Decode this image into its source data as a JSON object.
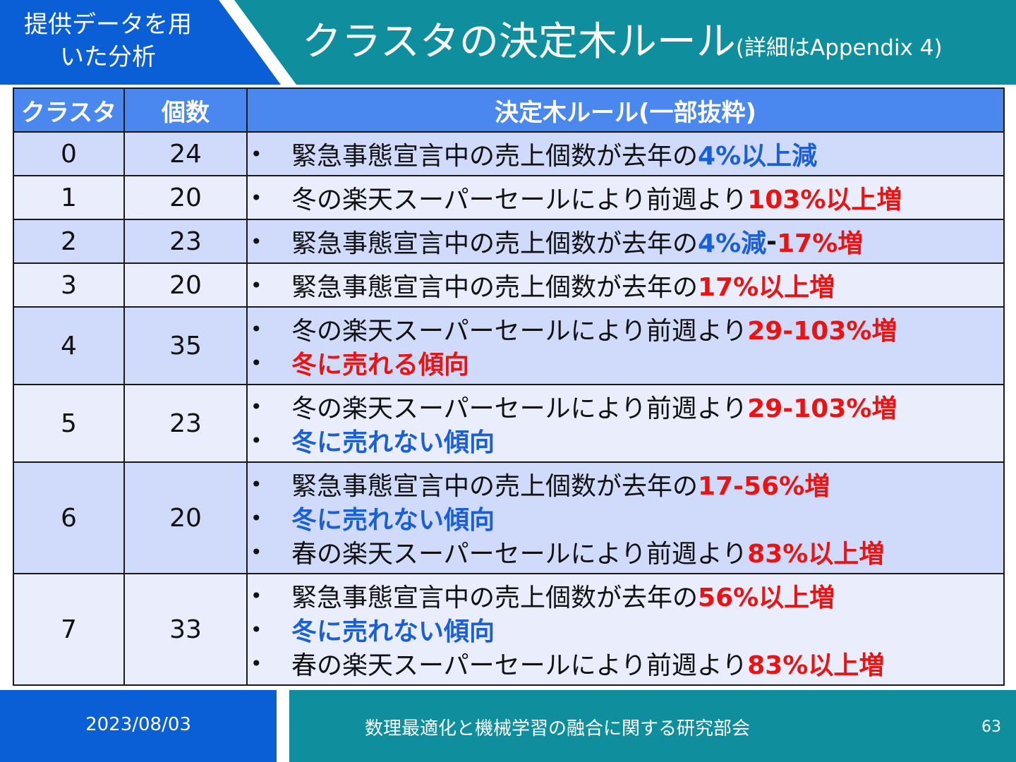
{
  "header": {
    "section_label": "提供データを用いた分析",
    "title_main": "クラスタの決定木ルール",
    "title_sub": "(詳細はAppendix 4)"
  },
  "table": {
    "headers": [
      "クラスタ",
      "個数",
      "決定木ルール(一部抜粋)"
    ],
    "rows": [
      {
        "cluster": "0",
        "count": "24",
        "rules": [
          [
            {
              "t": "緊急事態宣言中の売上個数が去年の",
              "c": ""
            },
            {
              "t": "4%以上減",
              "c": "blue"
            }
          ]
        ]
      },
      {
        "cluster": "1",
        "count": "20",
        "rules": [
          [
            {
              "t": "冬の楽天スーパーセールにより前週より",
              "c": ""
            },
            {
              "t": "103%以上増",
              "c": "red"
            }
          ]
        ]
      },
      {
        "cluster": "2",
        "count": "23",
        "rules": [
          [
            {
              "t": "緊急事態宣言中の売上個数が去年の",
              "c": ""
            },
            {
              "t": "4%減",
              "c": "blue"
            },
            {
              "t": "-",
              "c": "dark"
            },
            {
              "t": "17%増",
              "c": "red"
            }
          ]
        ]
      },
      {
        "cluster": "3",
        "count": "20",
        "rules": [
          [
            {
              "t": "緊急事態宣言中の売上個数が去年の",
              "c": ""
            },
            {
              "t": "17%以上増",
              "c": "red"
            }
          ]
        ]
      },
      {
        "cluster": "4",
        "count": "35",
        "rules": [
          [
            {
              "t": "冬の楽天スーパーセールにより前週より",
              "c": ""
            },
            {
              "t": "29-103%増",
              "c": "red"
            }
          ],
          [
            {
              "t": "冬に売れる傾向",
              "c": "red"
            }
          ]
        ]
      },
      {
        "cluster": "5",
        "count": "23",
        "rules": [
          [
            {
              "t": "冬の楽天スーパーセールにより前週より",
              "c": ""
            },
            {
              "t": "29-103%増",
              "c": "red"
            }
          ],
          [
            {
              "t": "冬に売れない傾向",
              "c": "blue"
            }
          ]
        ]
      },
      {
        "cluster": "6",
        "count": "20",
        "rules": [
          [
            {
              "t": "緊急事態宣言中の売上個数が去年の",
              "c": ""
            },
            {
              "t": "17-56%増",
              "c": "red"
            }
          ],
          [
            {
              "t": "冬に売れない傾向",
              "c": "blue"
            }
          ],
          [
            {
              "t": "春の楽天スーパーセールにより前週より",
              "c": ""
            },
            {
              "t": "83%以上増",
              "c": "red"
            }
          ]
        ]
      },
      {
        "cluster": "7",
        "count": "33",
        "rules": [
          [
            {
              "t": "緊急事態宣言中の売上個数が去年の",
              "c": ""
            },
            {
              "t": "56%以上増",
              "c": "red"
            }
          ],
          [
            {
              "t": "冬に売れない傾向",
              "c": "blue"
            }
          ],
          [
            {
              "t": "春の楽天スーパーセールにより前週より",
              "c": ""
            },
            {
              "t": "83%以上増",
              "c": "red"
            }
          ]
        ]
      }
    ]
  },
  "footer": {
    "date": "2023/08/03",
    "organization": "数理最適化と機械学習の融合に関する研究部会",
    "page_number": "63"
  },
  "colors": {
    "teal": "#0f8f9d",
    "blue": "#0a5ed6",
    "header_blue": "#4a88f0",
    "highlight_red": "#ee1111",
    "highlight_blue": "#1a5fd6"
  }
}
